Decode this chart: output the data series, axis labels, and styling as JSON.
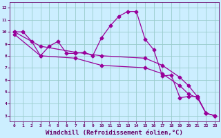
{
  "xlabel": "Windchill (Refroidissement éolien,°C)",
  "bg_color": "#cceeff",
  "line_color": "#990099",
  "grid_color": "#99cccc",
  "axis_color": "#660066",
  "spine_color": "#660066",
  "xlim": [
    -0.5,
    23.5
  ],
  "ylim": [
    2.5,
    12.5
  ],
  "xticks": [
    0,
    1,
    2,
    3,
    4,
    5,
    6,
    7,
    8,
    9,
    10,
    11,
    12,
    13,
    14,
    15,
    16,
    17,
    18,
    19,
    20,
    21,
    22,
    23
  ],
  "yticks": [
    3,
    4,
    5,
    6,
    7,
    8,
    9,
    10,
    11,
    12
  ],
  "line1_x": [
    0,
    1,
    2,
    3,
    4,
    5,
    6,
    7,
    8,
    9,
    10,
    11,
    12,
    13,
    14,
    15,
    16,
    17,
    18,
    19,
    20,
    21,
    22,
    23
  ],
  "line1_y": [
    10.0,
    10.0,
    9.2,
    8.0,
    8.8,
    9.2,
    8.2,
    8.2,
    8.3,
    8.0,
    9.5,
    10.5,
    11.3,
    11.7,
    11.7,
    9.4,
    8.5,
    6.3,
    6.4,
    4.5,
    4.6,
    4.6,
    3.2,
    3.0
  ],
  "line2_x": [
    0,
    3,
    7,
    10,
    15,
    17,
    19,
    20,
    21,
    22,
    23
  ],
  "line2_y": [
    10.0,
    8.8,
    8.3,
    8.0,
    7.8,
    7.2,
    6.2,
    5.5,
    4.6,
    3.2,
    3.0
  ],
  "line3_x": [
    0,
    3,
    7,
    10,
    15,
    17,
    19,
    20,
    21,
    22,
    23
  ],
  "line3_y": [
    9.8,
    8.0,
    7.8,
    7.2,
    7.0,
    6.5,
    5.5,
    4.8,
    4.5,
    3.2,
    3.0
  ],
  "markersize": 2.5,
  "linewidth": 0.9,
  "tick_fontsize": 4.5,
  "label_fontsize": 6.5
}
